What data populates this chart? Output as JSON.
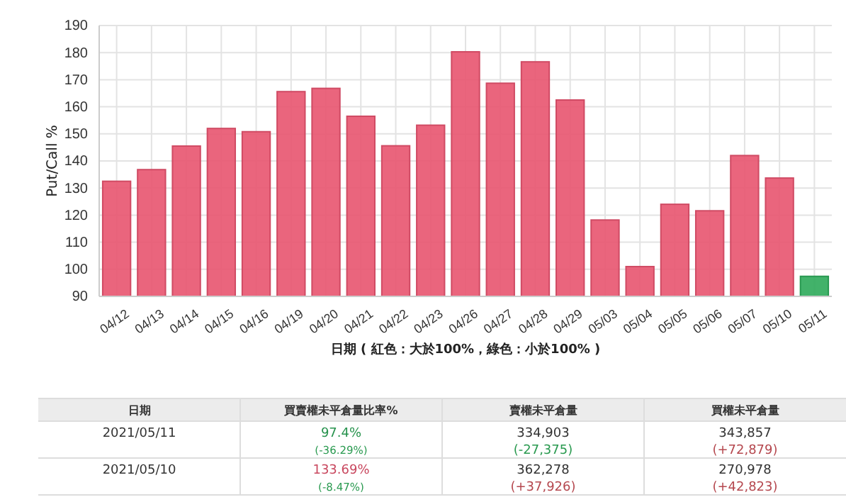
{
  "chart_data": {
    "type": "bar",
    "categories": [
      "04/12",
      "04/13",
      "04/14",
      "04/15",
      "04/16",
      "04/19",
      "04/20",
      "04/21",
      "04/22",
      "04/23",
      "04/26",
      "04/27",
      "04/28",
      "04/29",
      "05/03",
      "05/04",
      "05/05",
      "05/06",
      "05/07",
      "05/10",
      "05/11"
    ],
    "values": [
      132.5,
      136.8,
      145.5,
      152,
      150.8,
      165.6,
      166.8,
      156.5,
      145.6,
      153.2,
      180.3,
      168.7,
      176.6,
      162.5,
      118.2,
      101,
      124,
      121.6,
      142,
      133.69,
      97.4
    ],
    "colors": [
      "#e8546f",
      "#e8546f",
      "#e8546f",
      "#e8546f",
      "#e8546f",
      "#e8546f",
      "#e8546f",
      "#e8546f",
      "#e8546f",
      "#e8546f",
      "#e8546f",
      "#e8546f",
      "#e8546f",
      "#e8546f",
      "#e8546f",
      "#e8546f",
      "#e8546f",
      "#e8546f",
      "#e8546f",
      "#e8546f",
      "#2eaa5a"
    ],
    "ylim": [
      90,
      190
    ],
    "yticks": [
      90,
      100,
      110,
      120,
      130,
      140,
      150,
      160,
      170,
      180,
      190
    ],
    "ylabel": "Put/Call %",
    "xlabel": "日期 ( 紅色：大於100%，綠色：小於100% )",
    "grid": true,
    "annotations": [
      "日期",
      "買賣權未平倉量比率%",
      "賣權未平倉量",
      "買權未平倉量",
      "2021/05/11",
      "97.4%\n(-36.29%)",
      "334,903\n(-27,375)",
      "343,857\n(+72,879)",
      "2021/05/10",
      "133.69%\n(-8.47%)",
      "362,278\n(+37,926)",
      "270,978\n(+42,823)"
    ]
  }
}
